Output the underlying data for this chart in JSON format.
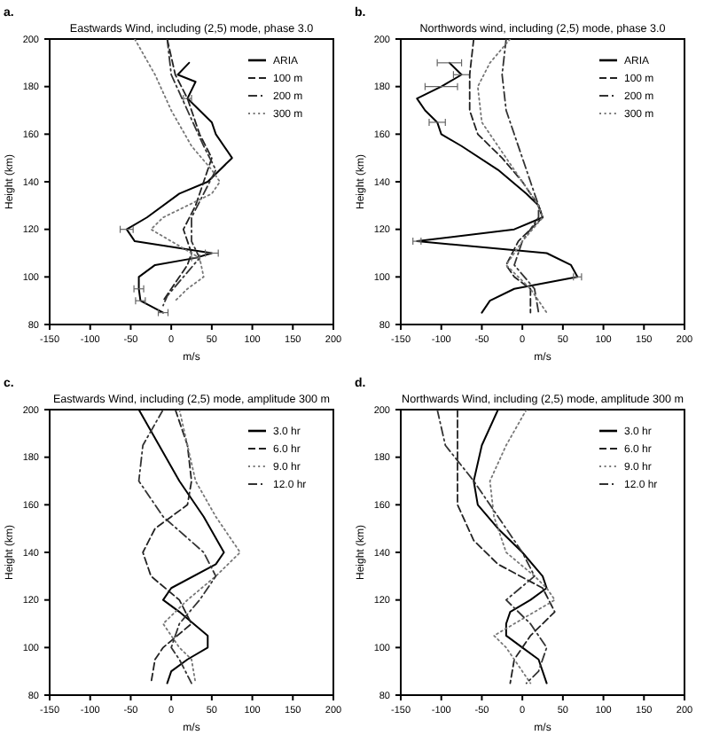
{
  "chart_data": [
    {
      "type": "line",
      "annotations": [
        "a."
      ],
      "title": "Eastwards Wind, including (2,5) mode, phase 3.0",
      "xlabel": "m/s",
      "ylabel": "Height (km)",
      "xlim": [
        -150,
        200
      ],
      "xticks": [
        -150,
        -100,
        -50,
        0,
        50,
        100,
        150,
        200
      ],
      "ylim": [
        80,
        200
      ],
      "yticks": [
        80,
        100,
        120,
        140,
        160,
        180,
        200
      ],
      "legend": "top right",
      "series": [
        {
          "name": "ARIA",
          "color": "#000000",
          "line_style": "solid",
          "x": [
            22,
            8,
            30,
            20,
            50,
            55,
            75,
            45,
            10,
            -30,
            -55,
            -45,
            50,
            30,
            -20,
            -40,
            -40,
            -38,
            -10
          ],
          "values": [
            190,
            185,
            182,
            175,
            165,
            160,
            150,
            140,
            135,
            125,
            120,
            115,
            110,
            108,
            105,
            100,
            95,
            90,
            85
          ],
          "xerrors": [
            null,
            null,
            null,
            5,
            null,
            null,
            null,
            null,
            null,
            null,
            8,
            null,
            8,
            5,
            null,
            null,
            6,
            6,
            6
          ]
        },
        {
          "name": "100 m",
          "color": "#222222",
          "line_style": "dashed",
          "x": [
            -5,
            5,
            20,
            35,
            50,
            40,
            30,
            15,
            25,
            20,
            10,
            0,
            -10
          ],
          "values": [
            200,
            185,
            175,
            160,
            150,
            140,
            130,
            120,
            110,
            105,
            100,
            95,
            90
          ]
        },
        {
          "name": "200 m",
          "color": "#333333",
          "line_style": "dashdot",
          "x": [
            -5,
            0,
            20,
            40,
            55,
            40,
            25,
            25,
            35,
            15,
            -5,
            -10
          ],
          "values": [
            200,
            185,
            170,
            155,
            145,
            135,
            125,
            115,
            108,
            100,
            92,
            88
          ]
        },
        {
          "name": "300 m",
          "color": "#777777",
          "line_style": "dotted",
          "x": [
            -45,
            -20,
            0,
            25,
            50,
            60,
            50,
            -10,
            -25,
            0,
            35,
            40,
            20,
            5
          ],
          "values": [
            200,
            185,
            170,
            155,
            145,
            140,
            135,
            125,
            120,
            115,
            108,
            100,
            95,
            90
          ]
        }
      ]
    },
    {
      "type": "line",
      "annotations": [
        "b."
      ],
      "title": "Northwords wind, including (2,5) mode, phase 3.0",
      "xlabel": "m/s",
      "ylabel": "Height (km)",
      "xlim": [
        -150,
        200
      ],
      "xticks": [
        -150,
        -100,
        -50,
        0,
        50,
        100,
        150,
        200
      ],
      "ylim": [
        80,
        200
      ],
      "yticks": [
        80,
        100,
        120,
        140,
        160,
        180,
        200
      ],
      "legend": "top right",
      "series": [
        {
          "name": "ARIA",
          "color": "#000000",
          "line_style": "solid",
          "x": [
            -90,
            -75,
            -100,
            -130,
            -120,
            -105,
            -100,
            -75,
            -30,
            5,
            20,
            25,
            -10,
            -130,
            30,
            60,
            68,
            -10,
            -40,
            -50
          ],
          "values": [
            190,
            185,
            180,
            175,
            170,
            165,
            160,
            155,
            145,
            135,
            130,
            125,
            120,
            115,
            110,
            105,
            100,
            95,
            90,
            85
          ],
          "xerrors": [
            15,
            10,
            20,
            null,
            null,
            10,
            null,
            null,
            null,
            null,
            null,
            null,
            null,
            5,
            null,
            null,
            5,
            null,
            null,
            null
          ]
        },
        {
          "name": "100 m",
          "color": "#222222",
          "line_style": "dashed",
          "x": [
            -60,
            -65,
            -65,
            -55,
            -25,
            0,
            20,
            25,
            -5,
            -20,
            -10,
            10,
            10
          ],
          "values": [
            200,
            185,
            170,
            160,
            150,
            140,
            130,
            125,
            115,
            105,
            100,
            95,
            85
          ]
        },
        {
          "name": "200 m",
          "color": "#333333",
          "line_style": "dashdot",
          "x": [
            -20,
            -25,
            -20,
            -10,
            0,
            10,
            20,
            20,
            0,
            -10,
            15,
            20
          ],
          "values": [
            200,
            185,
            170,
            160,
            150,
            140,
            130,
            125,
            115,
            105,
            95,
            85
          ]
        },
        {
          "name": "300 m",
          "color": "#777777",
          "line_style": "dotted",
          "x": [
            -15,
            -40,
            -55,
            -50,
            -30,
            0,
            20,
            25,
            0,
            -20,
            10,
            30
          ],
          "values": [
            200,
            190,
            180,
            165,
            155,
            140,
            130,
            125,
            115,
            105,
            95,
            85
          ]
        }
      ]
    },
    {
      "type": "line",
      "annotations": [
        "c."
      ],
      "title": "Eastwards Wind, including (2,5) mode, amplitude 300 m",
      "xlabel": "m/s",
      "ylabel": "Height (km)",
      "xlim": [
        -150,
        200
      ],
      "xticks": [
        -150,
        -100,
        -50,
        0,
        50,
        100,
        150,
        200
      ],
      "ylim": [
        80,
        200
      ],
      "yticks": [
        80,
        100,
        120,
        140,
        160,
        180,
        200
      ],
      "legend": "top right",
      "series": [
        {
          "name": "3.0 hr",
          "color": "#000000",
          "line_style": "solid",
          "x": [
            -40,
            -15,
            10,
            40,
            65,
            55,
            0,
            -10,
            10,
            45,
            45,
            20,
            0,
            -5
          ],
          "values": [
            200,
            185,
            170,
            155,
            140,
            135,
            125,
            120,
            115,
            105,
            100,
            95,
            90,
            85
          ]
        },
        {
          "name": "6.0 hr",
          "color": "#222222",
          "line_style": "dashed",
          "x": [
            5,
            20,
            25,
            20,
            -20,
            -35,
            -25,
            10,
            25,
            -10,
            -20,
            -25
          ],
          "values": [
            200,
            185,
            170,
            160,
            150,
            140,
            130,
            120,
            110,
            100,
            95,
            85
          ]
        },
        {
          "name": "9.0 hr",
          "color": "#777777",
          "line_style": "dotted",
          "x": [
            10,
            20,
            30,
            55,
            85,
            55,
            20,
            -10,
            10,
            25,
            30
          ],
          "values": [
            200,
            185,
            170,
            155,
            140,
            130,
            120,
            110,
            100,
            95,
            85
          ]
        },
        {
          "name": "12.0 hr",
          "color": "#333333",
          "line_style": "dashdot",
          "x": [
            -10,
            -35,
            -40,
            -10,
            40,
            55,
            35,
            10,
            0,
            10,
            25
          ],
          "values": [
            200,
            185,
            170,
            155,
            140,
            130,
            120,
            110,
            100,
            95,
            85
          ]
        }
      ]
    },
    {
      "type": "line",
      "annotations": [
        "d."
      ],
      "title": "Northwards Wind, including (2,5) mode, amplitude 300 m",
      "xlabel": "m/s",
      "ylabel": "Height (km)",
      "xlim": [
        -150,
        200
      ],
      "xticks": [
        -150,
        -100,
        -50,
        0,
        50,
        100,
        150,
        200
      ],
      "ylim": [
        80,
        200
      ],
      "yticks": [
        80,
        100,
        120,
        140,
        160,
        180,
        200
      ],
      "legend": "top right",
      "series": [
        {
          "name": "3.0 hr",
          "color": "#000000",
          "line_style": "solid",
          "x": [
            -30,
            -50,
            -60,
            -55,
            -30,
            0,
            25,
            30,
            10,
            -15,
            -20,
            -20,
            0,
            20,
            25,
            30
          ],
          "values": [
            200,
            185,
            170,
            160,
            150,
            140,
            130,
            125,
            120,
            115,
            110,
            105,
            100,
            95,
            90,
            85
          ]
        },
        {
          "name": "6.0 hr",
          "color": "#222222",
          "line_style": "dashed",
          "x": [
            -80,
            -80,
            -80,
            -60,
            -30,
            25,
            40,
            10,
            -10,
            -15
          ],
          "values": [
            200,
            180,
            160,
            145,
            135,
            125,
            115,
            105,
            95,
            85
          ]
        },
        {
          "name": "9.0 hr",
          "color": "#777777",
          "line_style": "dotted",
          "x": [
            5,
            -20,
            -40,
            -35,
            -20,
            15,
            30,
            40,
            -10,
            -35,
            -20,
            0,
            10
          ],
          "values": [
            200,
            185,
            170,
            155,
            140,
            130,
            125,
            120,
            110,
            105,
            100,
            90,
            85
          ]
        },
        {
          "name": "12.0 hr",
          "color": "#333333",
          "line_style": "dashdot",
          "x": [
            -105,
            -95,
            -60,
            -30,
            0,
            15,
            -20,
            10,
            30,
            20,
            5
          ],
          "values": [
            200,
            185,
            170,
            155,
            140,
            130,
            120,
            110,
            100,
            90,
            85
          ]
        }
      ]
    }
  ]
}
